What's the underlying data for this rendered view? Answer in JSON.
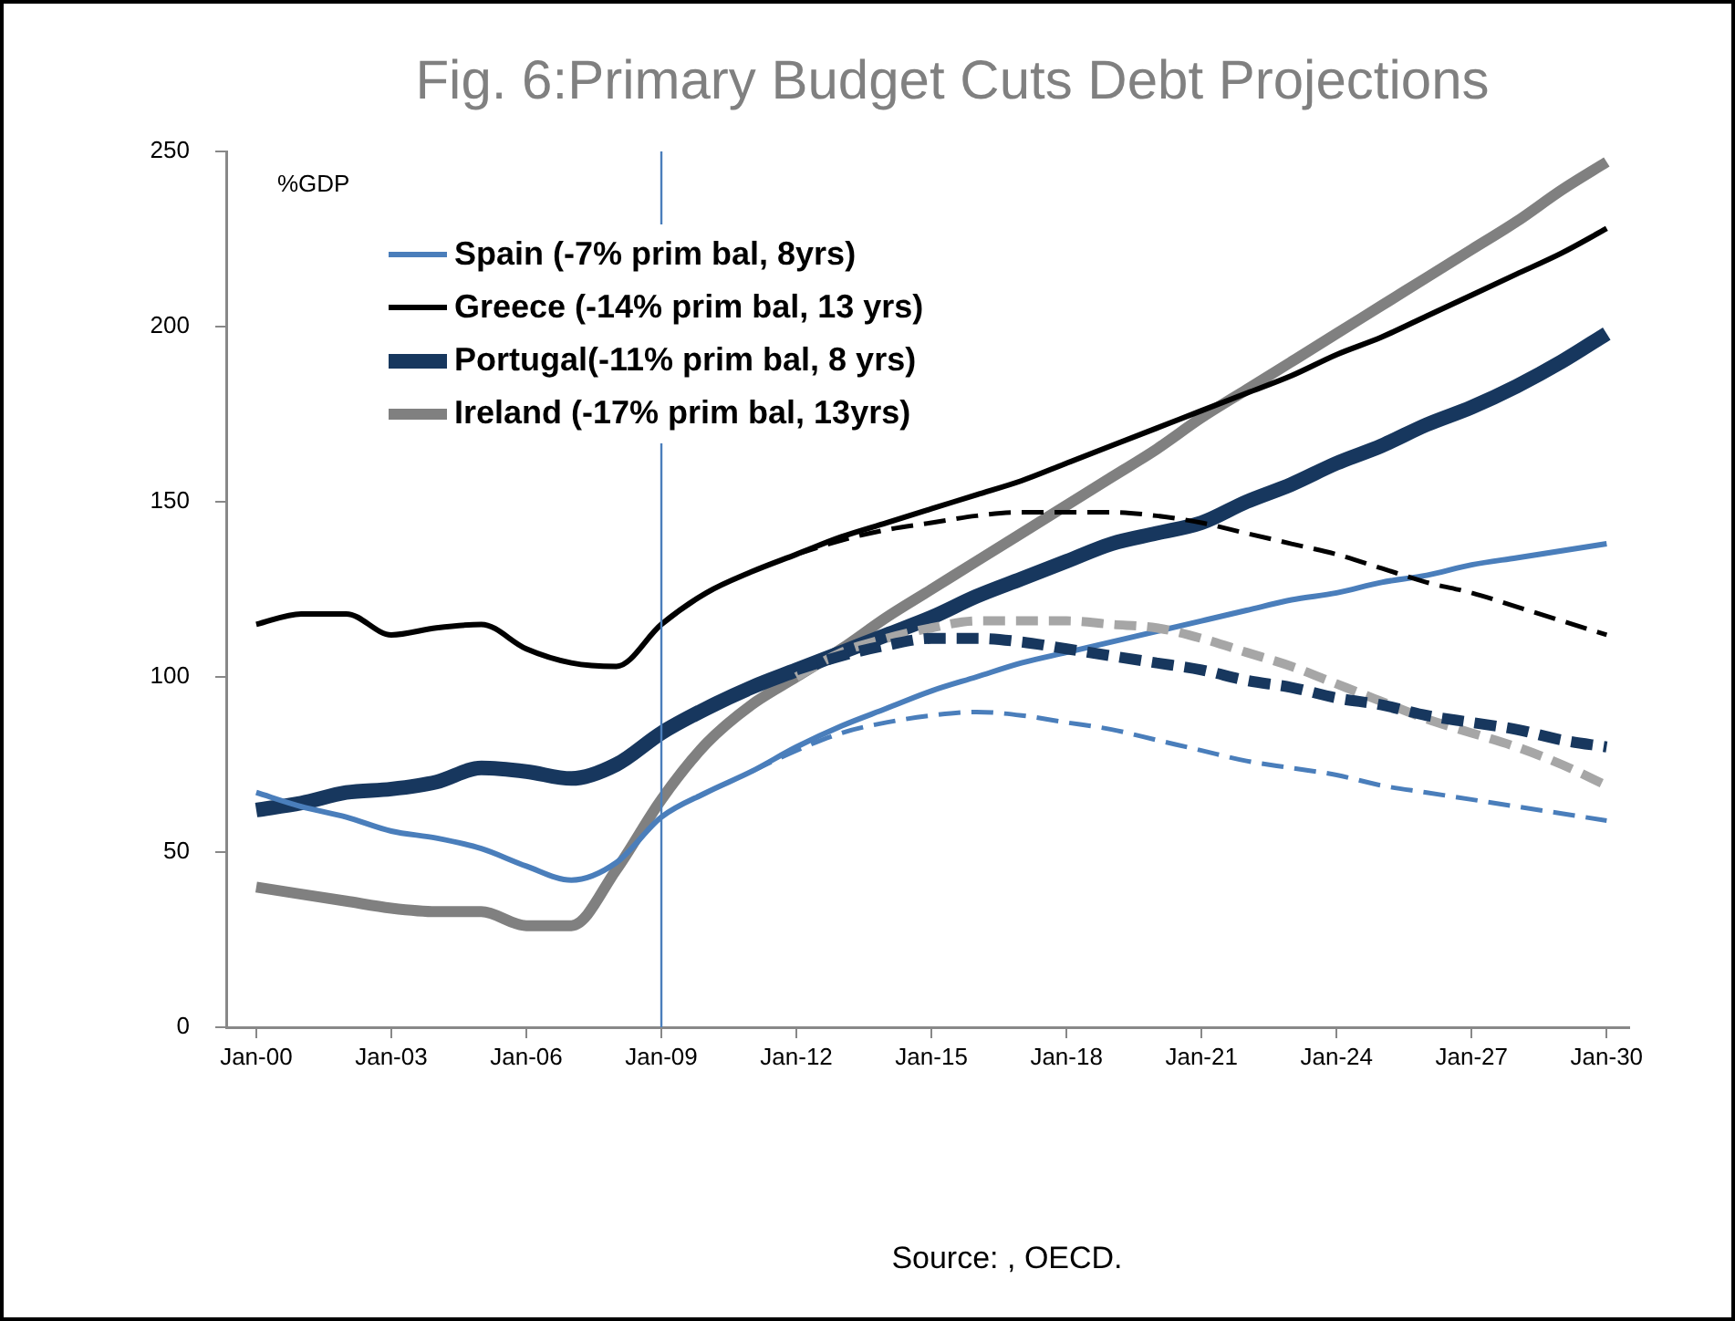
{
  "chart_data": {
    "type": "line",
    "title": "Fig. 6:Primary Budget Cuts Debt Projections",
    "ylabel": "%GDP",
    "annotations": [
      "Source: , OECD."
    ],
    "xlim": [
      "1999-05",
      "2030-07"
    ],
    "xticks": [
      {
        "value": "2000-01",
        "label": "Jan-00"
      },
      {
        "value": "2003-01",
        "label": "Jan-03"
      },
      {
        "value": "2006-01",
        "label": "Jan-06"
      },
      {
        "value": "2009-01",
        "label": "Jan-09"
      },
      {
        "value": "2012-01",
        "label": "Jan-12"
      },
      {
        "value": "2015-01",
        "label": "Jan-15"
      },
      {
        "value": "2018-01",
        "label": "Jan-18"
      },
      {
        "value": "2021-01",
        "label": "Jan-21"
      },
      {
        "value": "2024-01",
        "label": "Jan-24"
      },
      {
        "value": "2027-01",
        "label": "Jan-27"
      },
      {
        "value": "2030-01",
        "label": "Jan-30"
      }
    ],
    "ylim": [
      0,
      250
    ],
    "yticks": [
      0,
      50,
      100,
      150,
      200,
      250
    ],
    "grid": false,
    "legend": "top left",
    "marker": "none",
    "ref_lines": [
      {
        "axis": "x",
        "value": "2009-01",
        "color": "#4a7ebb"
      }
    ],
    "series": [
      {
        "name": "Spain (-7% prim bal, 8yrs)",
        "color": "#4a7ebb",
        "line_style": "solid",
        "x": [
          "2000-01",
          "2001-01",
          "2002-01",
          "2003-01",
          "2004-01",
          "2005-01",
          "2006-01",
          "2007-01",
          "2008-01",
          "2009-01",
          "2010-01",
          "2011-01",
          "2012-01",
          "2013-01",
          "2014-01",
          "2015-01",
          "2016-01",
          "2017-01",
          "2018-01",
          "2019-01",
          "2020-01",
          "2021-01",
          "2022-01",
          "2023-01",
          "2024-01",
          "2025-01",
          "2026-01",
          "2027-01",
          "2028-01",
          "2029-01",
          "2030-01"
        ],
        "values": [
          67,
          63,
          60,
          56,
          54,
          51,
          46,
          42,
          47,
          60,
          67,
          73,
          80,
          86,
          91,
          96,
          100,
          104,
          107,
          110,
          113,
          116,
          119,
          122,
          124,
          127,
          129,
          132,
          134,
          136,
          138
        ]
      },
      {
        "name": "Greece (-14% prim bal, 13 yrs)",
        "color": "#000000",
        "line_style": "solid",
        "x": [
          "2000-01",
          "2001-01",
          "2002-01",
          "2003-01",
          "2004-01",
          "2005-01",
          "2006-01",
          "2007-01",
          "2008-01",
          "2009-01",
          "2010-01",
          "2011-01",
          "2012-01",
          "2013-01",
          "2014-01",
          "2015-01",
          "2016-01",
          "2017-01",
          "2018-01",
          "2019-01",
          "2020-01",
          "2021-01",
          "2022-01",
          "2023-01",
          "2024-01",
          "2025-01",
          "2026-01",
          "2027-01",
          "2028-01",
          "2029-01",
          "2030-01"
        ],
        "values": [
          115,
          118,
          118,
          112,
          114,
          115,
          108,
          104,
          103,
          115,
          124,
          130,
          135,
          140,
          144,
          148,
          152,
          156,
          161,
          166,
          171,
          176,
          181,
          186,
          192,
          197,
          203,
          209,
          215,
          221,
          228
        ]
      },
      {
        "name": "Portugal(-11% prim bal, 8 yrs)",
        "color": "#17375e",
        "line_style": "solid",
        "x": [
          "2000-01",
          "2001-01",
          "2002-01",
          "2003-01",
          "2004-01",
          "2005-01",
          "2006-01",
          "2007-01",
          "2008-01",
          "2009-01",
          "2010-01",
          "2011-01",
          "2012-01",
          "2013-01",
          "2014-01",
          "2015-01",
          "2016-01",
          "2017-01",
          "2018-01",
          "2019-01",
          "2020-01",
          "2021-01",
          "2022-01",
          "2023-01",
          "2024-01",
          "2025-01",
          "2026-01",
          "2027-01",
          "2028-01",
          "2029-01",
          "2030-01"
        ],
        "values": [
          62,
          64,
          67,
          68,
          70,
          74,
          73,
          71,
          75,
          84,
          91,
          97,
          102,
          107,
          112,
          117,
          123,
          128,
          133,
          138,
          141,
          144,
          150,
          155,
          161,
          166,
          172,
          177,
          183,
          190,
          198
        ]
      },
      {
        "name": "Ireland (-17% prim bal, 13yrs)",
        "color": "#808080",
        "line_style": "solid",
        "x": [
          "2000-01",
          "2001-01",
          "2002-01",
          "2003-01",
          "2004-01",
          "2005-01",
          "2006-01",
          "2007-01",
          "2008-01",
          "2009-01",
          "2010-01",
          "2011-01",
          "2012-01",
          "2013-01",
          "2014-01",
          "2015-01",
          "2016-01",
          "2017-01",
          "2018-01",
          "2019-01",
          "2020-01",
          "2021-01",
          "2022-01",
          "2023-01",
          "2024-01",
          "2025-01",
          "2026-01",
          "2027-01",
          "2028-01",
          "2029-01",
          "2030-01"
        ],
        "values": [
          40,
          38,
          36,
          34,
          33,
          33,
          29,
          29,
          45,
          65,
          81,
          92,
          100,
          108,
          117,
          125,
          133,
          141,
          149,
          157,
          165,
          174,
          182,
          190,
          198,
          206,
          214,
          222,
          230,
          239,
          247
        ]
      },
      {
        "color": "#4a7ebb",
        "line_style": "dashed",
        "x": [
          "2011-01",
          "2012-01",
          "2013-01",
          "2014-01",
          "2015-01",
          "2016-01",
          "2017-01",
          "2018-01",
          "2019-01",
          "2020-01",
          "2021-01",
          "2022-01",
          "2023-01",
          "2024-01",
          "2025-01",
          "2026-01",
          "2027-01",
          "2028-01",
          "2029-01",
          "2030-01"
        ],
        "values": [
          73,
          79,
          84,
          87,
          89,
          90,
          89,
          87,
          85,
          82,
          79,
          76,
          74,
          72,
          69,
          67,
          65,
          63,
          61,
          59
        ]
      },
      {
        "color": "#000000",
        "line_style": "dashed",
        "x": [
          "2012-01",
          "2013-01",
          "2014-01",
          "2015-01",
          "2016-01",
          "2017-01",
          "2018-01",
          "2019-01",
          "2020-01",
          "2021-01",
          "2022-01",
          "2023-01",
          "2024-01",
          "2025-01",
          "2026-01",
          "2027-01",
          "2028-01",
          "2029-01",
          "2030-01"
        ],
        "values": [
          135,
          139,
          142,
          144,
          146,
          147,
          147,
          147,
          146,
          144,
          141,
          138,
          135,
          131,
          127,
          124,
          120,
          116,
          112
        ]
      },
      {
        "color": "#17375e",
        "line_style": "dashed",
        "x": [
          "2012-01",
          "2013-01",
          "2014-01",
          "2015-01",
          "2016-01",
          "2017-01",
          "2018-01",
          "2019-01",
          "2020-01",
          "2021-01",
          "2022-01",
          "2023-01",
          "2024-01",
          "2025-01",
          "2026-01",
          "2027-01",
          "2028-01",
          "2029-01",
          "2030-01"
        ],
        "values": [
          102,
          106,
          109,
          111,
          111,
          110,
          108,
          106,
          104,
          102,
          99,
          97,
          94,
          92,
          89,
          87,
          85,
          82,
          80
        ]
      },
      {
        "color": "#a6a6a6",
        "line_style": "dashed",
        "x": [
          "2012-01",
          "2013-01",
          "2014-01",
          "2015-01",
          "2016-01",
          "2017-01",
          "2018-01",
          "2019-01",
          "2020-01",
          "2021-01",
          "2022-01",
          "2023-01",
          "2024-01",
          "2025-01",
          "2026-01",
          "2027-01",
          "2028-01",
          "2029-01",
          "2030-01"
        ],
        "values": [
          100,
          107,
          111,
          114,
          116,
          116,
          116,
          115,
          114,
          111,
          107,
          103,
          98,
          93,
          88,
          84,
          80,
          75,
          69
        ]
      }
    ]
  }
}
